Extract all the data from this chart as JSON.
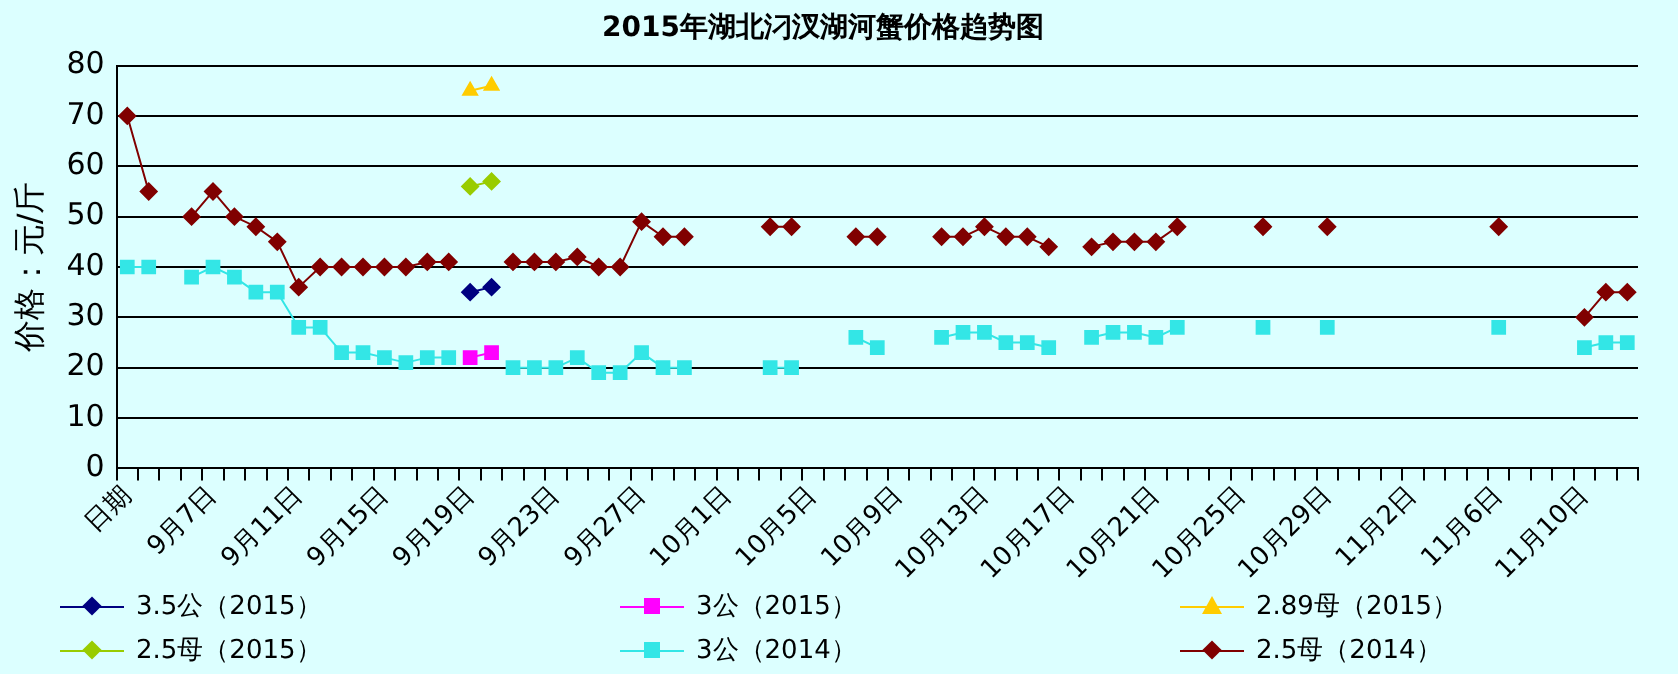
{
  "chart_data": {
    "type": "line",
    "title": "2015年湖北汈汊湖河蟹价格趋势图",
    "ylabel": "价格：元/斤",
    "categories": [
      "日期",
      null,
      null,
      null,
      "9月7日",
      null,
      null,
      null,
      "9月11日",
      null,
      null,
      null,
      "9月15日",
      null,
      null,
      null,
      "9月19日",
      null,
      null,
      null,
      "9月23日",
      null,
      null,
      null,
      "9月27日",
      null,
      null,
      null,
      "10月1日",
      null,
      null,
      null,
      "10月5日",
      null,
      null,
      null,
      "10月9日",
      null,
      null,
      null,
      "10月13日",
      null,
      null,
      null,
      "10月17日",
      null,
      null,
      null,
      "10月21日",
      null,
      null,
      null,
      "10月25日",
      null,
      null,
      null,
      "10月29日",
      null,
      null,
      null,
      "11月2日",
      null,
      null,
      null,
      "11月6日",
      null,
      null,
      null,
      "11月10日",
      null,
      null
    ],
    "series": [
      {
        "name": "3.5公（2015）",
        "color": "#000080",
        "marker": "diamond",
        "values": [
          null,
          null,
          null,
          null,
          null,
          null,
          null,
          null,
          null,
          null,
          null,
          null,
          null,
          null,
          null,
          null,
          35,
          36,
          null,
          null,
          null,
          null,
          null,
          null,
          null,
          null,
          null,
          null,
          null,
          null,
          null,
          null,
          null,
          null,
          null,
          null,
          null,
          null,
          null,
          null,
          null,
          null,
          null,
          null,
          null,
          null,
          null,
          null,
          null,
          null,
          null,
          null,
          null,
          null,
          null,
          null,
          null,
          null,
          null,
          null,
          null,
          null,
          null,
          null,
          null,
          null,
          null,
          null,
          null,
          null,
          null
        ]
      },
      {
        "name": "3公（2015）",
        "color": "#ff00ff",
        "marker": "square",
        "values": [
          null,
          null,
          null,
          null,
          null,
          null,
          null,
          null,
          null,
          null,
          null,
          null,
          null,
          null,
          null,
          null,
          22,
          23,
          null,
          null,
          null,
          null,
          null,
          null,
          null,
          null,
          null,
          null,
          null,
          null,
          null,
          null,
          null,
          null,
          null,
          null,
          null,
          null,
          null,
          null,
          null,
          null,
          null,
          null,
          null,
          null,
          null,
          null,
          null,
          null,
          null,
          null,
          null,
          null,
          null,
          null,
          null,
          null,
          null,
          null,
          null,
          null,
          null,
          null,
          null,
          null,
          null,
          null,
          null,
          null,
          null
        ]
      },
      {
        "name": "2.89母（2015）",
        "color": "#ffcc00",
        "marker": "triangle",
        "values": [
          null,
          null,
          null,
          null,
          null,
          null,
          null,
          null,
          null,
          null,
          null,
          null,
          null,
          null,
          null,
          null,
          75,
          76,
          null,
          null,
          null,
          null,
          null,
          null,
          null,
          null,
          null,
          null,
          null,
          null,
          null,
          null,
          null,
          null,
          null,
          null,
          null,
          null,
          null,
          null,
          null,
          null,
          null,
          null,
          null,
          null,
          null,
          null,
          null,
          null,
          null,
          null,
          null,
          null,
          null,
          null,
          null,
          null,
          null,
          null,
          null,
          null,
          null,
          null,
          null,
          null,
          null,
          null,
          null,
          null,
          null
        ]
      },
      {
        "name": "2.5母（2015）",
        "color": "#99cc00",
        "marker": "diamond",
        "values": [
          null,
          null,
          null,
          null,
          null,
          null,
          null,
          null,
          null,
          null,
          null,
          null,
          null,
          null,
          null,
          null,
          56,
          57,
          null,
          null,
          null,
          null,
          null,
          null,
          null,
          null,
          null,
          null,
          null,
          null,
          null,
          null,
          null,
          null,
          null,
          null,
          null,
          null,
          null,
          null,
          null,
          null,
          null,
          null,
          null,
          null,
          null,
          null,
          null,
          null,
          null,
          null,
          null,
          null,
          null,
          null,
          null,
          null,
          null,
          null,
          null,
          null,
          null,
          null,
          null,
          null,
          null,
          null,
          null,
          null,
          null
        ]
      },
      {
        "name": "3公（2014）",
        "color": "#33e6e6",
        "marker": "square",
        "values": [
          40,
          40,
          null,
          38,
          40,
          38,
          35,
          35,
          28,
          28,
          23,
          23,
          22,
          21,
          22,
          22,
          null,
          null,
          20,
          20,
          20,
          22,
          19,
          19,
          23,
          20,
          20,
          null,
          null,
          null,
          20,
          20,
          null,
          null,
          26,
          24,
          null,
          null,
          26,
          27,
          27,
          25,
          25,
          24,
          null,
          26,
          27,
          27,
          26,
          28,
          null,
          null,
          null,
          28,
          null,
          null,
          28,
          null,
          null,
          null,
          null,
          null,
          null,
          null,
          28,
          null,
          null,
          null,
          24,
          25,
          25
        ]
      },
      {
        "name": "2.5母（2014）",
        "color": "#800000",
        "marker": "diamond",
        "values": [
          70,
          55,
          null,
          50,
          55,
          50,
          48,
          45,
          36,
          40,
          40,
          40,
          40,
          40,
          41,
          41,
          null,
          null,
          41,
          41,
          41,
          42,
          40,
          40,
          49,
          46,
          46,
          null,
          null,
          null,
          48,
          48,
          null,
          null,
          46,
          46,
          null,
          null,
          46,
          46,
          48,
          46,
          46,
          44,
          null,
          44,
          45,
          45,
          45,
          48,
          null,
          null,
          null,
          48,
          null,
          null,
          48,
          null,
          null,
          null,
          null,
          null,
          null,
          null,
          48,
          null,
          null,
          null,
          30,
          35,
          35
        ]
      }
    ],
    "ylim": [
      0,
      80
    ],
    "yticks": [
      0,
      10,
      20,
      30,
      40,
      50,
      60,
      70,
      80
    ],
    "grid": "y",
    "legend": "bottom"
  }
}
